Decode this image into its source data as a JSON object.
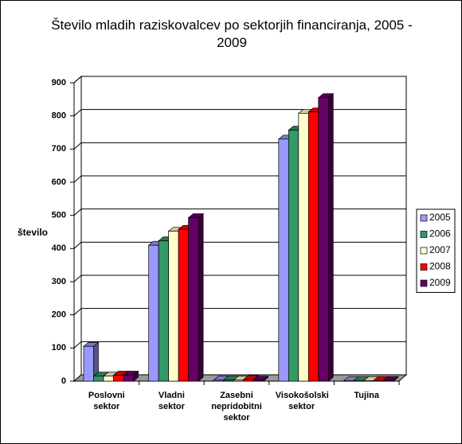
{
  "chart_data": {
    "type": "bar3d",
    "title": "Število mladih raziskovalcev po sektorjih financiranja, 2005 - 2009",
    "y_label": "število",
    "categories": [
      "Poslovni sektor",
      "Vladni sektor",
      "Zasebni nepridobitni sektor",
      "Visokošolski sektor",
      "Tujina"
    ],
    "series": [
      {
        "name": "2005",
        "color": "#9999ff",
        "values": [
          105,
          410,
          3,
          730,
          1
        ]
      },
      {
        "name": "2006",
        "color": "#339966",
        "values": [
          15,
          423,
          3,
          757,
          1
        ]
      },
      {
        "name": "2007",
        "color": "#ffffcc",
        "values": [
          15,
          452,
          3,
          808,
          1
        ]
      },
      {
        "name": "2008",
        "color": "#ff0000",
        "values": [
          18,
          458,
          5,
          812,
          2
        ]
      },
      {
        "name": "2009",
        "color": "#660066",
        "values": [
          18,
          493,
          3,
          855,
          2
        ]
      }
    ],
    "ylim": [
      0,
      900
    ],
    "yticks": [
      0,
      100,
      200,
      300,
      400,
      500,
      600,
      700,
      800,
      900
    ],
    "grid": true,
    "legend": "right"
  }
}
